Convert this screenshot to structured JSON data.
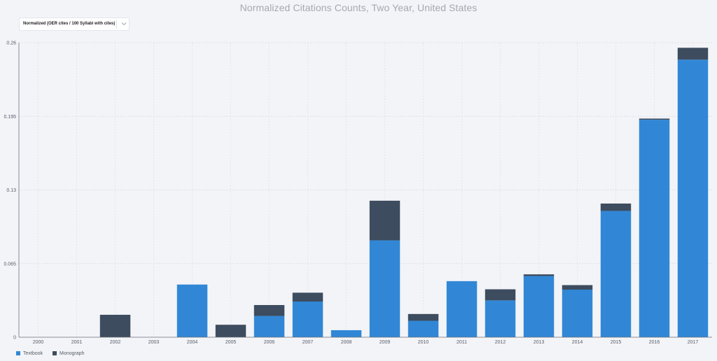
{
  "chart_title": "Normalized Citations Counts, Two Year, United States",
  "selector": {
    "value": "Normalized (OER cites / 100 Syllabi with cites)"
  },
  "colors": {
    "textbook": "#3187d6",
    "monograph": "#3d4c5e"
  },
  "legend": [
    {
      "label": "Textbook",
      "color": "#3187d6"
    },
    {
      "label": "Monograph",
      "color": "#3d4c5e"
    }
  ],
  "chart_data": {
    "type": "bar",
    "stacked": true,
    "title": "Normalized Citations Counts, Two Year, United States",
    "categories": [
      "2000",
      "2001",
      "2002",
      "2003",
      "2004",
      "2005",
      "2006",
      "2007",
      "2008",
      "2009",
      "2010",
      "2011",
      "2012",
      "2013",
      "2014",
      "2015",
      "2016",
      "2017"
    ],
    "series": [
      {
        "name": "Textbook",
        "color": "#3187d6",
        "values": [
          0,
          0,
          0,
          0,
          0.0465,
          0,
          0.0188,
          0.0315,
          0.0062,
          0.0855,
          0.0145,
          0.0495,
          0.0325,
          0.054,
          0.042,
          0.1115,
          0.192,
          0.245
        ]
      },
      {
        "name": "Monograph",
        "color": "#3d4c5e",
        "values": [
          0,
          0,
          0.0198,
          0,
          0,
          0.011,
          0.0096,
          0.0078,
          0,
          0.035,
          0.006,
          0,
          0.0098,
          0.0015,
          0.004,
          0.0065,
          0.001,
          0.0105
        ]
      }
    ],
    "yticks": [
      "0",
      "0.065",
      "0.13",
      "0.195",
      "0.26"
    ],
    "ylim": [
      0,
      0.26
    ],
    "xlabel": "",
    "ylabel": "",
    "grid": true,
    "legend_position": "bottom-left"
  }
}
